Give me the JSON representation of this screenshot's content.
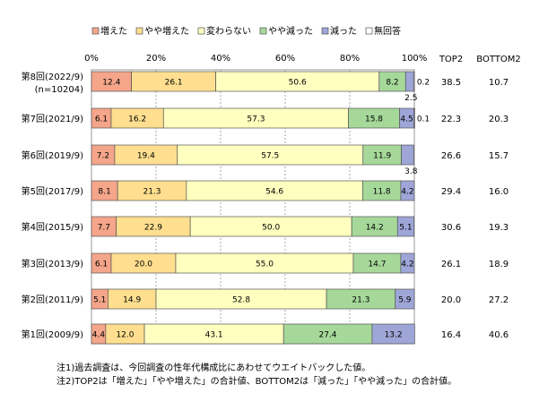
{
  "chart_data": {
    "type": "bar",
    "stacked": true,
    "orientation": "horizontal",
    "xlim": [
      0,
      100
    ],
    "x_ticks": [
      "0%",
      "20%",
      "40%",
      "60%",
      "80%",
      "100%"
    ],
    "legend_position": "top",
    "grid": true,
    "categories": [
      "第8回(2022/9)",
      "第7回(2021/9)",
      "第6回(2019/9)",
      "第5回(2017/9)",
      "第4回(2015/9)",
      "第3回(2013/9)",
      "第2回(2011/9)",
      "第1回(2009/9)"
    ],
    "category_sublabels": [
      "(n=10204)",
      "",
      "",
      "",
      "",
      "",
      "",
      ""
    ],
    "series": [
      {
        "name": "増えた",
        "color": "#f4a58a",
        "values": [
          12.4,
          6.1,
          7.2,
          8.1,
          7.7,
          6.1,
          5.1,
          4.4
        ]
      },
      {
        "name": "やや増えた",
        "color": "#ffdf8f",
        "values": [
          26.1,
          16.2,
          19.4,
          21.3,
          22.9,
          20.0,
          14.9,
          12.0
        ]
      },
      {
        "name": "変わらない",
        "color": "#ffffc0",
        "values": [
          50.6,
          57.3,
          57.5,
          54.6,
          50.0,
          55.0,
          52.8,
          43.1
        ]
      },
      {
        "name": "やや減った",
        "color": "#a6d89a",
        "values": [
          8.2,
          15.8,
          11.9,
          11.8,
          14.2,
          14.7,
          21.3,
          27.4
        ]
      },
      {
        "name": "減った",
        "color": "#9ea6d8",
        "values": [
          2.5,
          4.5,
          3.8,
          4.2,
          5.1,
          4.2,
          5.9,
          13.2
        ]
      },
      {
        "name": "無回答",
        "color": "#ffffff",
        "values": [
          0.2,
          0.1,
          0,
          0,
          0,
          0,
          0,
          0
        ]
      }
    ],
    "segment_labels": [
      [
        "12.4",
        "26.1",
        "50.6",
        "8.2",
        "2.5",
        "0.2"
      ],
      [
        "6.1",
        "16.2",
        "57.3",
        "15.8",
        "4.5",
        "0.1"
      ],
      [
        "7.2",
        "19.4",
        "57.5",
        "11.9",
        "3.8",
        ""
      ],
      [
        "8.1",
        "21.3",
        "54.6",
        "11.8",
        "4.2",
        ""
      ],
      [
        "7.7",
        "22.9",
        "50.0",
        "14.2",
        "5.1",
        ""
      ],
      [
        "6.1",
        "20.0",
        "55.0",
        "14.7",
        "4.2",
        ""
      ],
      [
        "5.1",
        "14.9",
        "52.8",
        "21.3",
        "5.9",
        ""
      ],
      [
        "4.4",
        "12.0",
        "43.1",
        "27.4",
        "13.2",
        ""
      ]
    ],
    "extra_columns": [
      {
        "header": "TOP2",
        "values": [
          "38.5",
          "22.3",
          "26.6",
          "29.4",
          "30.6",
          "26.1",
          "20.0",
          "16.4"
        ]
      },
      {
        "header": "BOTTOM2",
        "values": [
          "10.7",
          "20.3",
          "15.7",
          "16.0",
          "19.3",
          "18.9",
          "27.2",
          "40.6"
        ]
      }
    ]
  },
  "notes": [
    "注1)過去調査は、今回調査の性年代構成比にあわせてウエイトバックした値。",
    "注2)TOP2は「増えた」「やや増えた」の合計値、BOTTOM2は「減った」「やや減った」の合計値。"
  ]
}
